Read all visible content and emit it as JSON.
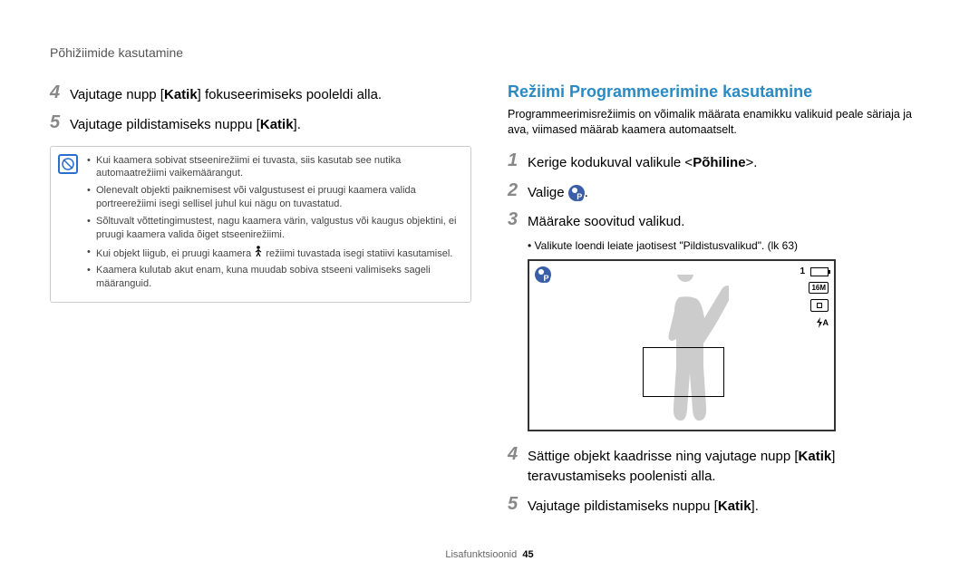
{
  "header": "Põhižiimide kasutamine",
  "left": {
    "steps": [
      {
        "num": "4",
        "text_before": "Vajutage nupp [",
        "bold": "Katik",
        "text_after": "] fokuseerimiseks pooleldi alla."
      },
      {
        "num": "5",
        "text_before": "Vajutage pildistamiseks nuppu [",
        "bold": "Katik",
        "text_after": "]."
      }
    ],
    "note": [
      "Kui kaamera sobivat stseenirežiimi ei tuvasta, siis kasutab see nutika automaatrežiimi vaikemäärangut.",
      "Olenevalt objekti paiknemisest või valgustusest ei pruugi kaamera valida portreerežiimi isegi sellisel juhul kui nägu on tuvastatud.",
      "Sõltuvalt võttetingimustest, nagu kaamera värin, valgustus või kaugus objektini, ei pruugi kaamera valida õiget stseenirežiimi.",
      "Kui objekt liigub, ei pruugi kaamera __ICON__ režiimi tuvastada isegi statiivi kasutamisel.",
      "Kaamera kulutab akut enam, kuna muudab sobiva stseeni valimiseks sageli määranguid."
    ]
  },
  "right": {
    "title": "Režiimi Programmeerimine kasutamine",
    "intro": "Programmeerimisrežiimis on võimalik määrata enamikku valikuid peale säriaja ja ava, viimased määrab kaamera automaatselt.",
    "steps_top": [
      {
        "num": "1",
        "text_before": "Kerige kodukuval valikule <",
        "bold": "Põhiline",
        "text_after": ">."
      },
      {
        "num": "2",
        "text_before": "Valige ",
        "icon": true,
        "text_after": "."
      },
      {
        "num": "3",
        "text_before": "Määrake soovitud valikud.",
        "bold": "",
        "text_after": ""
      }
    ],
    "step3_sub": "Valikute loendi leiate jaotisest \"Pildistusvalikud\". (lk 63)",
    "screen": {
      "counter": "1",
      "resolution": "16M",
      "center_box": "◻",
      "flash": "⚡A"
    },
    "steps_bottom": [
      {
        "num": "4",
        "text_before": "Sättige objekt kaadrisse ning vajutage nupp [",
        "bold": "Katik",
        "text_after": "] teravustamiseks poolenisti alla."
      },
      {
        "num": "5",
        "text_before": "Vajutage pildistamiseks nuppu [",
        "bold": "Katik",
        "text_after": "]."
      }
    ]
  },
  "footer": {
    "label": "Lisafunktsioonid",
    "page": "45"
  }
}
